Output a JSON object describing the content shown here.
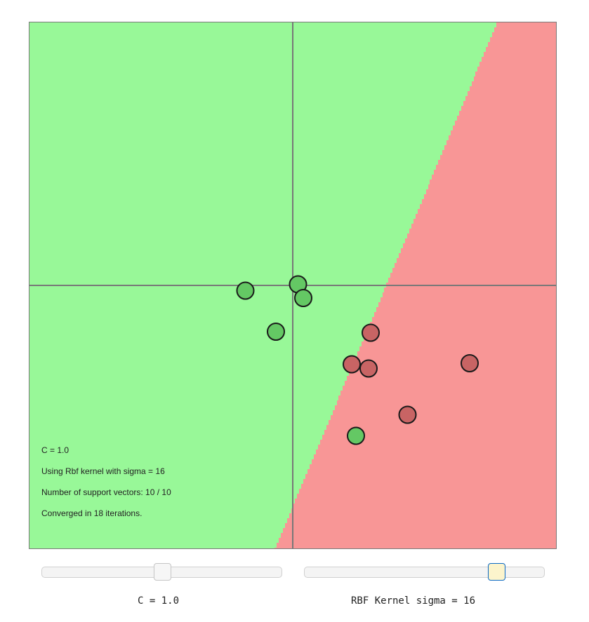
{
  "info": {
    "c_text": "C = 1.0",
    "kernel_text": "Using Rbf kernel with sigma = 16",
    "support_vectors_text": "Number of support vectors: 10 / 10",
    "converged_text": "Converged in 18 iterations."
  },
  "controls": {
    "c_slider": {
      "caption": "C = 1.0",
      "fraction": 0.5
    },
    "sigma_slider": {
      "caption": "RBF Kernel sigma = 16",
      "fraction": 0.8
    }
  },
  "colors": {
    "positive_region": "#98f898",
    "negative_region": "#f89696",
    "positive_point": "#64c864",
    "negative_point": "#c86464",
    "axis": "#787878"
  },
  "points": [
    {
      "x": -0.45,
      "y": -0.05,
      "label": 1
    },
    {
      "x": 0.05,
      "y": 0.01,
      "label": 1
    },
    {
      "x": 0.1,
      "y": -0.12,
      "label": 1
    },
    {
      "x": -0.16,
      "y": -0.44,
      "label": 1
    },
    {
      "x": 0.6,
      "y": -1.43,
      "label": 1
    },
    {
      "x": 0.74,
      "y": -0.45,
      "label": -1
    },
    {
      "x": 0.56,
      "y": -0.75,
      "label": -1
    },
    {
      "x": 0.72,
      "y": -0.79,
      "label": -1
    },
    {
      "x": 1.68,
      "y": -0.74,
      "label": -1
    },
    {
      "x": 1.09,
      "y": -1.23,
      "label": -1
    }
  ]
}
